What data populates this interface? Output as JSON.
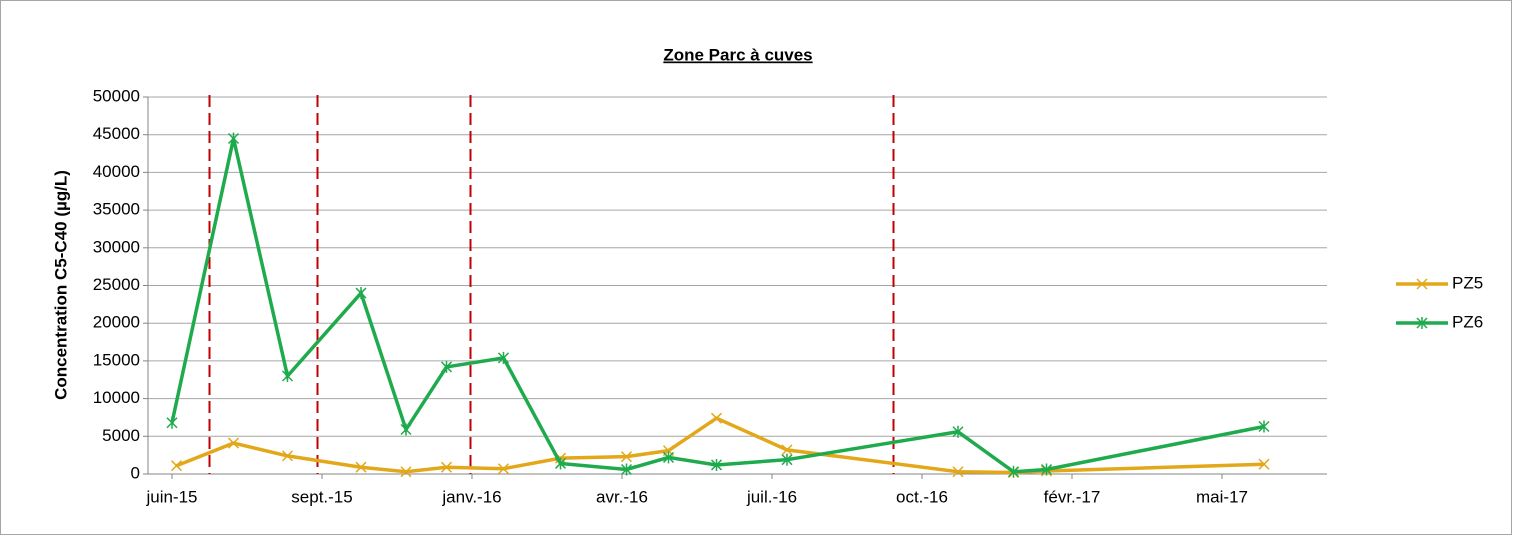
{
  "chart_data": {
    "type": "line",
    "title": "Zone Parc à cuves",
    "y_label": "Concentration  C5-C40 (µg/L)",
    "xlim": [
      -16,
      770
    ],
    "xticks": [
      {
        "value": 0,
        "label": "juin-15"
      },
      {
        "value": 100,
        "label": "sept.-15"
      },
      {
        "value": 200,
        "label": "janv.-16"
      },
      {
        "value": 300,
        "label": "avr.-16"
      },
      {
        "value": 400,
        "label": "juil.-16"
      },
      {
        "value": 500,
        "label": "oct.-16"
      },
      {
        "value": 600,
        "label": "févr.-17"
      },
      {
        "value": 700,
        "label": "mai-17"
      }
    ],
    "ylim": [
      0,
      50000
    ],
    "yticks": [
      0,
      5000,
      10000,
      15000,
      20000,
      25000,
      30000,
      35000,
      40000,
      45000,
      50000
    ],
    "grid": true,
    "legend": "right",
    "reference_lines": {
      "color": "#c00000",
      "x": [
        25,
        97,
        199,
        481
      ]
    },
    "series": [
      {
        "name": "PZ5",
        "color": "#e3a81a",
        "marker": "x",
        "x": [
          3,
          41,
          77,
          126,
          156,
          183,
          221,
          259,
          303,
          331,
          363,
          410,
          524,
          561,
          583,
          728
        ],
        "values": [
          1100,
          4100,
          2400,
          900,
          300,
          900,
          700,
          2100,
          2300,
          3100,
          7400,
          3200,
          300,
          200,
          400,
          1300
        ]
      },
      {
        "name": "PZ6",
        "color": "#1fab4d",
        "marker": "asterisk",
        "x": [
          0,
          41,
          77,
          126,
          156,
          183,
          221,
          259,
          303,
          331,
          363,
          410,
          524,
          561,
          583,
          728
        ],
        "values": [
          6800,
          44500,
          13000,
          24000,
          5900,
          14200,
          15400,
          1400,
          600,
          2200,
          1200,
          1900,
          5600,
          300,
          600,
          6300
        ]
      }
    ]
  }
}
